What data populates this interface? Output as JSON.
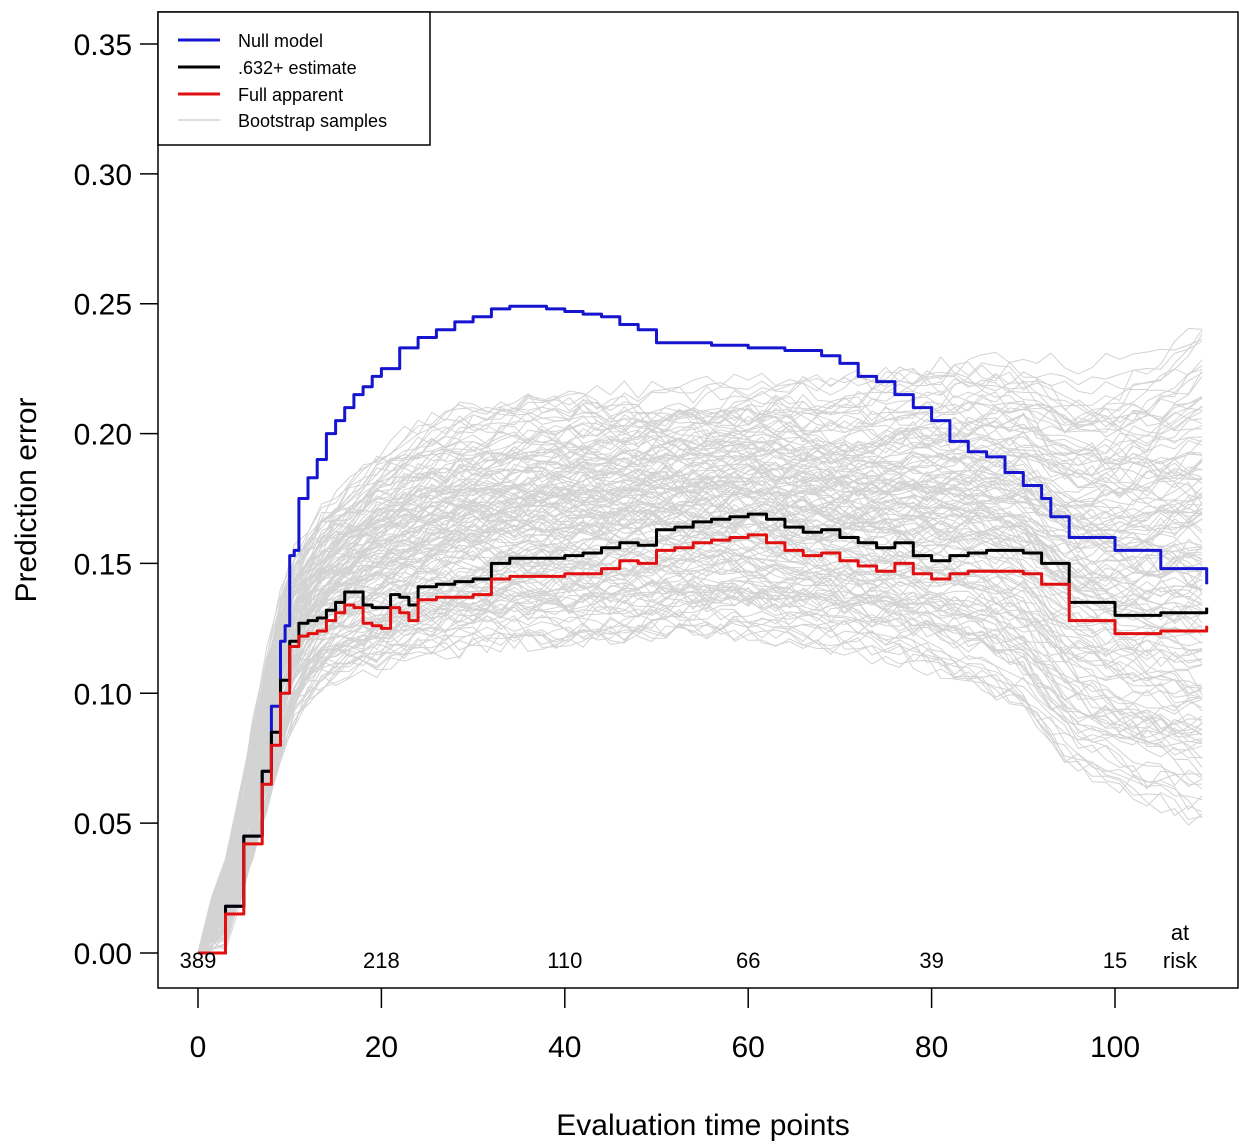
{
  "chart_data": {
    "type": "line",
    "title": "",
    "xlabel": "Evaluation time points",
    "ylabel": "Prediction error",
    "xlim": [
      0,
      110
    ],
    "ylim": [
      0,
      0.35
    ],
    "x_ticks": [
      0,
      20,
      40,
      60,
      80,
      100
    ],
    "x_tick_labels": [
      "0",
      "20",
      "40",
      "60",
      "80",
      "100"
    ],
    "y_ticks": [
      0,
      0.05,
      0.1,
      0.15,
      0.2,
      0.25,
      0.3,
      0.35
    ],
    "y_tick_labels": [
      "0.00",
      "0.05",
      "0.10",
      "0.15",
      "0.20",
      "0.25",
      "0.30",
      "0.35"
    ],
    "legend": {
      "position": "top-left",
      "entries": [
        "Null model",
        ".632+ estimate",
        "Full apparent",
        "Bootstrap samples"
      ]
    },
    "at_risk": {
      "times": [
        0,
        20,
        40,
        60,
        80,
        100
      ],
      "counts": [
        "389",
        "218",
        "110",
        "66",
        "39",
        "15"
      ],
      "label_line1": "at",
      "label_line2": "risk"
    },
    "series": [
      {
        "name": "Null model",
        "color": "#1515d0",
        "x": [
          0,
          3,
          5,
          7,
          8,
          9,
          9.5,
          10,
          10.5,
          11,
          12,
          13,
          14,
          15,
          16,
          17,
          18,
          19,
          20,
          22,
          24,
          26,
          28,
          30,
          32,
          34,
          36,
          38,
          40,
          42,
          44,
          46,
          48,
          50,
          52,
          54,
          56,
          58,
          60,
          62,
          64,
          66,
          68,
          70,
          72,
          74,
          76,
          78,
          80,
          82,
          84,
          86,
          88,
          90,
          92,
          93,
          95,
          100,
          105,
          110
        ],
        "y": [
          0,
          0.018,
          0.045,
          0.07,
          0.095,
          0.12,
          0.126,
          0.153,
          0.155,
          0.175,
          0.183,
          0.19,
          0.2,
          0.205,
          0.21,
          0.215,
          0.218,
          0.222,
          0.225,
          0.233,
          0.237,
          0.24,
          0.243,
          0.245,
          0.248,
          0.249,
          0.249,
          0.248,
          0.247,
          0.246,
          0.245,
          0.242,
          0.24,
          0.235,
          0.235,
          0.235,
          0.234,
          0.234,
          0.233,
          0.233,
          0.232,
          0.232,
          0.23,
          0.227,
          0.222,
          0.22,
          0.215,
          0.21,
          0.205,
          0.197,
          0.193,
          0.191,
          0.185,
          0.18,
          0.175,
          0.168,
          0.16,
          0.155,
          0.148,
          0.142
        ]
      },
      {
        "name": ".632+ estimate",
        "color": "#000000",
        "x": [
          0,
          3,
          5,
          7,
          8,
          9,
          10,
          11,
          12,
          13,
          14,
          15,
          16,
          17,
          18,
          19,
          20,
          21,
          22,
          23,
          24,
          26,
          28,
          30,
          32,
          34,
          36,
          38,
          40,
          42,
          44,
          46,
          48,
          50,
          52,
          54,
          56,
          58,
          60,
          62,
          64,
          66,
          68,
          70,
          72,
          74,
          76,
          78,
          80,
          82,
          84,
          86,
          88,
          90,
          92,
          95,
          100,
          105,
          110
        ],
        "y": [
          0,
          0.018,
          0.045,
          0.07,
          0.085,
          0.105,
          0.12,
          0.127,
          0.128,
          0.129,
          0.132,
          0.135,
          0.139,
          0.139,
          0.134,
          0.133,
          0.133,
          0.138,
          0.137,
          0.134,
          0.141,
          0.142,
          0.143,
          0.144,
          0.15,
          0.152,
          0.152,
          0.152,
          0.153,
          0.154,
          0.156,
          0.158,
          0.157,
          0.163,
          0.164,
          0.166,
          0.167,
          0.168,
          0.169,
          0.167,
          0.164,
          0.162,
          0.163,
          0.16,
          0.158,
          0.156,
          0.158,
          0.153,
          0.151,
          0.153,
          0.154,
          0.155,
          0.155,
          0.154,
          0.15,
          0.135,
          0.13,
          0.131,
          0.133
        ]
      },
      {
        "name": "Full apparent",
        "color": "#e01010",
        "x": [
          0,
          3,
          5,
          7,
          8,
          9,
          10,
          11,
          12,
          13,
          14,
          15,
          16,
          17,
          18,
          19,
          20,
          21,
          22,
          23,
          24,
          26,
          28,
          30,
          32,
          34,
          36,
          38,
          40,
          42,
          44,
          46,
          48,
          50,
          52,
          54,
          56,
          58,
          60,
          62,
          64,
          66,
          68,
          70,
          72,
          74,
          76,
          78,
          80,
          82,
          84,
          86,
          88,
          90,
          92,
          95,
          100,
          105,
          110
        ],
        "y": [
          0,
          0.015,
          0.042,
          0.065,
          0.08,
          0.1,
          0.118,
          0.122,
          0.123,
          0.124,
          0.128,
          0.131,
          0.134,
          0.133,
          0.127,
          0.126,
          0.125,
          0.133,
          0.131,
          0.128,
          0.136,
          0.137,
          0.137,
          0.138,
          0.144,
          0.145,
          0.145,
          0.145,
          0.146,
          0.146,
          0.148,
          0.151,
          0.15,
          0.155,
          0.156,
          0.158,
          0.159,
          0.16,
          0.161,
          0.158,
          0.155,
          0.153,
          0.154,
          0.151,
          0.149,
          0.147,
          0.15,
          0.146,
          0.144,
          0.146,
          0.147,
          0.147,
          0.147,
          0.146,
          0.142,
          0.128,
          0.123,
          0.124,
          0.126
        ]
      }
    ],
    "bootstrap_band": {
      "name": "Bootstrap samples",
      "color": "#d3d3d3",
      "x": [
        0,
        3,
        5,
        7,
        9,
        11,
        14,
        17,
        20,
        25,
        30,
        35,
        40,
        45,
        50,
        55,
        60,
        65,
        70,
        75,
        80,
        85,
        90,
        95,
        100,
        105,
        110
      ],
      "lower": [
        0,
        0.005,
        0.025,
        0.05,
        0.075,
        0.095,
        0.105,
        0.108,
        0.11,
        0.115,
        0.118,
        0.12,
        0.12,
        0.122,
        0.124,
        0.124,
        0.123,
        0.12,
        0.118,
        0.114,
        0.11,
        0.105,
        0.095,
        0.075,
        0.065,
        0.058,
        0.05
      ],
      "upper": [
        0.005,
        0.035,
        0.07,
        0.11,
        0.14,
        0.16,
        0.175,
        0.185,
        0.195,
        0.205,
        0.21,
        0.213,
        0.215,
        0.216,
        0.218,
        0.22,
        0.222,
        0.222,
        0.22,
        0.222,
        0.225,
        0.228,
        0.23,
        0.225,
        0.228,
        0.235,
        0.245
      ],
      "center": [
        0,
        0.02,
        0.045,
        0.075,
        0.105,
        0.125,
        0.135,
        0.14,
        0.145,
        0.155,
        0.16,
        0.163,
        0.165,
        0.167,
        0.17,
        0.172,
        0.172,
        0.17,
        0.168,
        0.165,
        0.163,
        0.163,
        0.16,
        0.145,
        0.14,
        0.14,
        0.14
      ]
    }
  }
}
